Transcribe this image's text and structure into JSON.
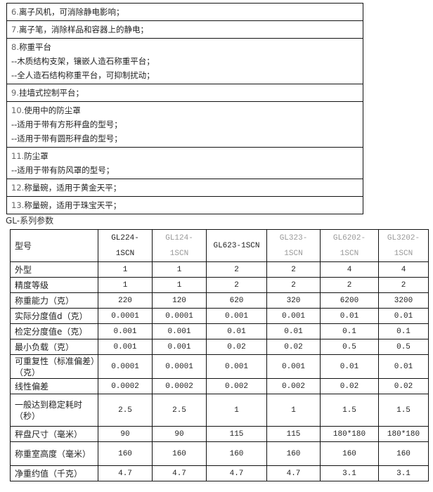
{
  "accessories": [
    {
      "num": "6.",
      "lines": [
        "离子风机，可消除静电影响；"
      ]
    },
    {
      "num": "7.",
      "lines": [
        "离子笔，消除样品和容器上的静电；"
      ]
    },
    {
      "num": "8.",
      "lines": [
        "称重平台",
        "--木质结构支架，镶嵌人造石称重平台；",
        "--全人造石结构称重平台，可抑制扰动；"
      ]
    },
    {
      "num": "9.",
      "lines": [
        "挂墙式控制平台；"
      ]
    },
    {
      "num": "10.",
      "lines": [
        "使用中的防尘罩",
        "--适用于带有方形秤盘的型号；",
        "--适用于带有圆形秤盘的型号；"
      ]
    },
    {
      "num": "11.",
      "lines": [
        "防尘罩",
        "--适用于带有防风罩的型号；"
      ]
    },
    {
      "num": "12.",
      "lines": [
        "称量碗，适用于黄金天平；"
      ]
    },
    {
      "num": "13.",
      "lines": [
        "称量碗，适用于珠宝天平；"
      ]
    }
  ],
  "spec_title": "GL-系列参数",
  "spec": {
    "header_label": "型号",
    "models": [
      {
        "line1": "GL224-",
        "line2": "1SCN",
        "gray": false
      },
      {
        "line1": "GL124-",
        "line2": "1SCN",
        "gray": true
      },
      {
        "line1": "GL623-1SCN",
        "line2": "",
        "gray": false
      },
      {
        "line1": "GL323-",
        "line2": "1SCN",
        "gray": true
      },
      {
        "line1": "GL6202-",
        "line2": "1SCN",
        "gray": true
      },
      {
        "line1": "GL3202-",
        "line2": "1SCN",
        "gray": true
      }
    ],
    "rows": [
      {
        "label": "外型",
        "values": [
          "1",
          "1",
          "2",
          "2",
          "4",
          "4"
        ],
        "h": 22
      },
      {
        "label": "精度等级",
        "values": [
          "1",
          "1",
          "2",
          "2",
          "2",
          "2"
        ],
        "h": 22
      },
      {
        "label": "称重能力（克）",
        "values": [
          "220",
          "120",
          "620",
          "320",
          "6200",
          "3200"
        ],
        "h": 22
      },
      {
        "label": "实际分度值d（克）",
        "values": [
          "0.0001",
          "0.0001",
          "0.001",
          "0.001",
          "0.01",
          "0.01"
        ],
        "h": 22
      },
      {
        "label": "检定分度值e（克）",
        "values": [
          "0.001",
          "0.001",
          "0.01",
          "0.01",
          "0.1",
          "0.1"
        ],
        "h": 22
      },
      {
        "label": "最小负载（克）",
        "values": [
          "0.001",
          "0.001",
          "0.02",
          "0.02",
          "0.5",
          "0.5"
        ],
        "h": 22
      },
      {
        "label": "可重复性（标准偏差）（克）",
        "values": [
          "0.0001",
          "0.0001",
          "0.001",
          "0.001",
          "0.01",
          "0.01"
        ],
        "h": 34
      },
      {
        "label": "线性偏差",
        "values": [
          "0.0002",
          "0.0002",
          "0.002",
          "0.002",
          "0.02",
          "0.02"
        ],
        "h": 22
      },
      {
        "label": "一般达到稳定耗时（秒）",
        "values": [
          "2.5",
          "2.5",
          "1",
          "1",
          "1.5",
          "1.5"
        ],
        "h": 46
      },
      {
        "label": "秤盘尺寸（毫米）",
        "values": [
          "90",
          "90",
          "115",
          "115",
          "180*180",
          "180*180"
        ],
        "h": 22
      },
      {
        "label": "称重室高度（毫米）",
        "values": [
          "160",
          "160",
          "160",
          "160",
          "160",
          "160"
        ],
        "h": 34
      },
      {
        "label": "净重约值（千克）",
        "values": [
          "4.7",
          "4.7",
          "4.7",
          "4.7",
          "3.1",
          "3.1"
        ],
        "h": 22
      }
    ]
  }
}
